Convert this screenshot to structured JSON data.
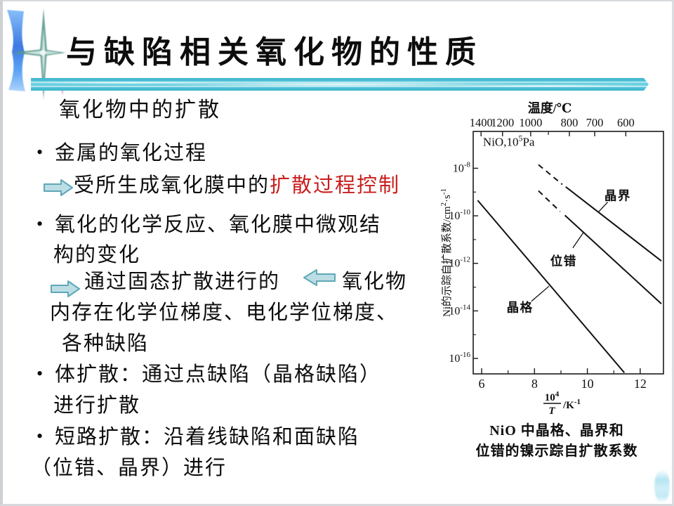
{
  "slide": {
    "title": "与缺陷相关氧化物的性质",
    "subtitle": "氧化物中的扩散",
    "bullet_marker": "•",
    "bullets": [
      {
        "text": "金属的氧化过程"
      },
      {
        "text_black": "受所生成氧化膜中的",
        "text_red": "扩散过程控制"
      },
      {
        "text": "氧化的化学反应、氧化膜中微观结"
      },
      {
        "text": "构的变化"
      },
      {
        "text_pre": "通过固态扩散进行的",
        "text_post": "氧化物"
      },
      {
        "text": "内存在化学位梯度、电化学位梯度、"
      },
      {
        "text": "各种缺陷"
      },
      {
        "text": "体扩散：通过点缺陷（晶格缺陷）"
      },
      {
        "text": "进行扩散"
      },
      {
        "text": "短路扩散：沿着线缺陷和面缺陷"
      },
      {
        "text": "（位错、晶界）进行"
      }
    ],
    "colors": {
      "highlight_red": "#c81e1e",
      "band_teal": "#4fc4d8",
      "arrow_fill": "#bcdde4",
      "arrow_stroke": "#5ea8b8",
      "ribbon_blue": "#2e6fe0",
      "star_teal": "#58988c",
      "sparkle_pink": "#e9b7e3"
    }
  },
  "chart_data": {
    "type": "line",
    "annotation": {
      "pre": "NiO,10",
      "sup": "5",
      "post": "Pa"
    },
    "top_axis": {
      "label": "温度/℃",
      "ticks": [
        1400,
        1200,
        1000,
        800,
        700,
        600
      ],
      "minor_ticks": [
        900
      ]
    },
    "x_axis": {
      "ticks": [
        6,
        8,
        10,
        12
      ],
      "minor_ticks": [
        7,
        9,
        11
      ],
      "range": [
        5.68,
        12.88
      ],
      "label_parts": {
        "numerator_base": "10",
        "numerator_sup": "4",
        "denominator": "T",
        "unit": "/K",
        "unit_sup": "-1"
      }
    },
    "y_axis": {
      "tick_base": "10",
      "tick_exponents": [
        -8,
        -10,
        -12,
        -14,
        -16
      ],
      "minor_tick_exponents": [
        -9,
        -11,
        -13,
        -15
      ],
      "range_log10": [
        -6.45,
        -16.65
      ],
      "label_parts": {
        "pre": "Ni的示踪自扩散系数/cm",
        "sup1": "2",
        "mid": "·s",
        "sup2": "-1"
      }
    },
    "series": [
      {
        "name": "晶格",
        "segments": [
          {
            "dashed": false,
            "points": [
              [
                5.85,
                -9.35
              ],
              [
                11.4,
                -16.6
              ]
            ]
          }
        ],
        "label": {
          "x": 7.45,
          "logD": -13.85,
          "pointer": [
            [
              7.88,
              -13.6
            ],
            [
              8.55,
              -12.96
            ]
          ]
        }
      },
      {
        "name": "位错",
        "segments": [
          {
            "dashed": true,
            "points": [
              [
                8.15,
                -8.95
              ],
              [
                8.97,
                -9.82
              ]
            ]
          },
          {
            "dashed": false,
            "points": [
              [
                9.15,
                -9.98
              ],
              [
                12.8,
                -13.7
              ]
            ]
          }
        ],
        "label": {
          "x": 9.1,
          "logD": -11.9,
          "pointer": [
            [
              9.45,
              -11.35
            ],
            [
              9.87,
              -10.67
            ]
          ]
        }
      },
      {
        "name": "晶界",
        "segments": [
          {
            "dashed": true,
            "points": [
              [
                8.15,
                -7.85
              ],
              [
                9.05,
                -8.68
              ]
            ]
          },
          {
            "dashed": false,
            "points": [
              [
                9.18,
                -8.78
              ],
              [
                12.8,
                -11.9
              ]
            ]
          }
        ],
        "label": {
          "x": 11.15,
          "logD": -9.15,
          "pointer": [
            [
              10.77,
              -9.42
            ],
            [
              10.43,
              -9.83
            ]
          ]
        }
      }
    ],
    "caption_lines": [
      "NiO 中晶格、晶界和",
      "位错的镍示踪自扩散系数"
    ]
  }
}
